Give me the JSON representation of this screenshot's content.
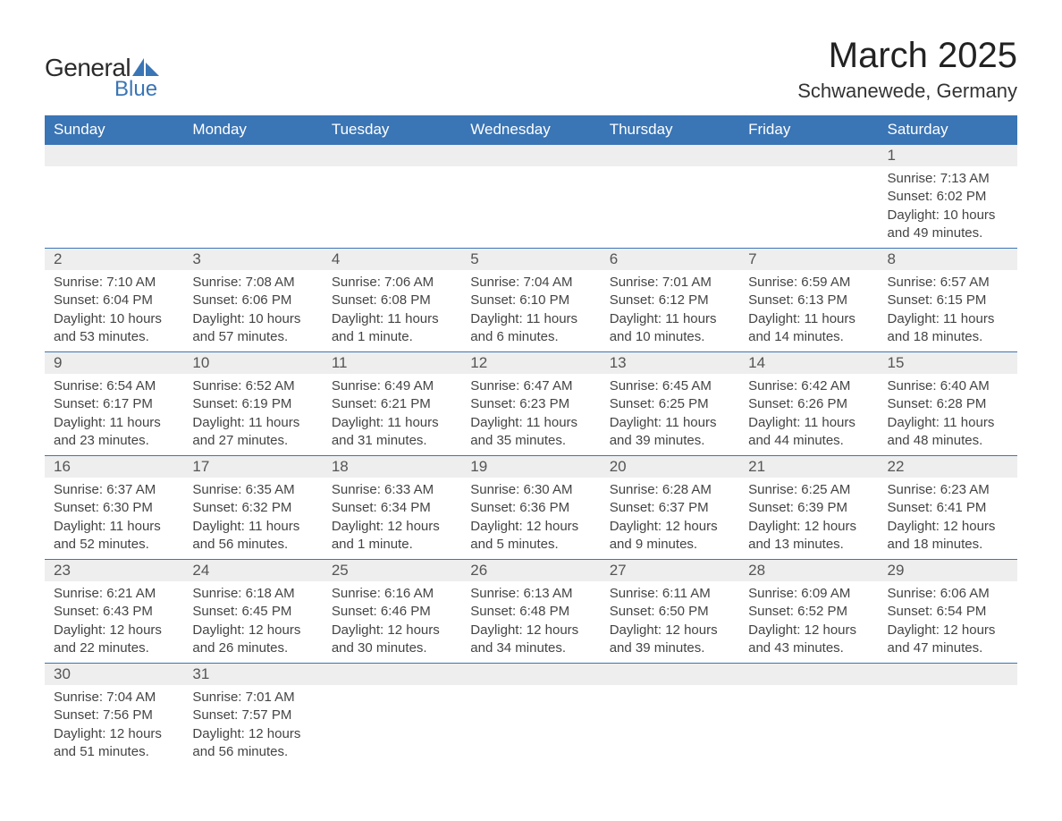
{
  "logo": {
    "general": "General",
    "blue": "Blue"
  },
  "title": "March 2025",
  "location": "Schwanewede, Germany",
  "colors": {
    "header_bg": "#3a75b5",
    "header_text": "#ffffff",
    "daynum_bg": "#eeeeee",
    "border": "#3a75b5",
    "text": "#444444",
    "logo_blue": "#3a75b5"
  },
  "day_headers": [
    "Sunday",
    "Monday",
    "Tuesday",
    "Wednesday",
    "Thursday",
    "Friday",
    "Saturday"
  ],
  "weeks": [
    [
      null,
      null,
      null,
      null,
      null,
      null,
      {
        "n": "1",
        "sr": "Sunrise: 7:13 AM",
        "ss": "Sunset: 6:02 PM",
        "d1": "Daylight: 10 hours",
        "d2": "and 49 minutes."
      }
    ],
    [
      {
        "n": "2",
        "sr": "Sunrise: 7:10 AM",
        "ss": "Sunset: 6:04 PM",
        "d1": "Daylight: 10 hours",
        "d2": "and 53 minutes."
      },
      {
        "n": "3",
        "sr": "Sunrise: 7:08 AM",
        "ss": "Sunset: 6:06 PM",
        "d1": "Daylight: 10 hours",
        "d2": "and 57 minutes."
      },
      {
        "n": "4",
        "sr": "Sunrise: 7:06 AM",
        "ss": "Sunset: 6:08 PM",
        "d1": "Daylight: 11 hours",
        "d2": "and 1 minute."
      },
      {
        "n": "5",
        "sr": "Sunrise: 7:04 AM",
        "ss": "Sunset: 6:10 PM",
        "d1": "Daylight: 11 hours",
        "d2": "and 6 minutes."
      },
      {
        "n": "6",
        "sr": "Sunrise: 7:01 AM",
        "ss": "Sunset: 6:12 PM",
        "d1": "Daylight: 11 hours",
        "d2": "and 10 minutes."
      },
      {
        "n": "7",
        "sr": "Sunrise: 6:59 AM",
        "ss": "Sunset: 6:13 PM",
        "d1": "Daylight: 11 hours",
        "d2": "and 14 minutes."
      },
      {
        "n": "8",
        "sr": "Sunrise: 6:57 AM",
        "ss": "Sunset: 6:15 PM",
        "d1": "Daylight: 11 hours",
        "d2": "and 18 minutes."
      }
    ],
    [
      {
        "n": "9",
        "sr": "Sunrise: 6:54 AM",
        "ss": "Sunset: 6:17 PM",
        "d1": "Daylight: 11 hours",
        "d2": "and 23 minutes."
      },
      {
        "n": "10",
        "sr": "Sunrise: 6:52 AM",
        "ss": "Sunset: 6:19 PM",
        "d1": "Daylight: 11 hours",
        "d2": "and 27 minutes."
      },
      {
        "n": "11",
        "sr": "Sunrise: 6:49 AM",
        "ss": "Sunset: 6:21 PM",
        "d1": "Daylight: 11 hours",
        "d2": "and 31 minutes."
      },
      {
        "n": "12",
        "sr": "Sunrise: 6:47 AM",
        "ss": "Sunset: 6:23 PM",
        "d1": "Daylight: 11 hours",
        "d2": "and 35 minutes."
      },
      {
        "n": "13",
        "sr": "Sunrise: 6:45 AM",
        "ss": "Sunset: 6:25 PM",
        "d1": "Daylight: 11 hours",
        "d2": "and 39 minutes."
      },
      {
        "n": "14",
        "sr": "Sunrise: 6:42 AM",
        "ss": "Sunset: 6:26 PM",
        "d1": "Daylight: 11 hours",
        "d2": "and 44 minutes."
      },
      {
        "n": "15",
        "sr": "Sunrise: 6:40 AM",
        "ss": "Sunset: 6:28 PM",
        "d1": "Daylight: 11 hours",
        "d2": "and 48 minutes."
      }
    ],
    [
      {
        "n": "16",
        "sr": "Sunrise: 6:37 AM",
        "ss": "Sunset: 6:30 PM",
        "d1": "Daylight: 11 hours",
        "d2": "and 52 minutes."
      },
      {
        "n": "17",
        "sr": "Sunrise: 6:35 AM",
        "ss": "Sunset: 6:32 PM",
        "d1": "Daylight: 11 hours",
        "d2": "and 56 minutes."
      },
      {
        "n": "18",
        "sr": "Sunrise: 6:33 AM",
        "ss": "Sunset: 6:34 PM",
        "d1": "Daylight: 12 hours",
        "d2": "and 1 minute."
      },
      {
        "n": "19",
        "sr": "Sunrise: 6:30 AM",
        "ss": "Sunset: 6:36 PM",
        "d1": "Daylight: 12 hours",
        "d2": "and 5 minutes."
      },
      {
        "n": "20",
        "sr": "Sunrise: 6:28 AM",
        "ss": "Sunset: 6:37 PM",
        "d1": "Daylight: 12 hours",
        "d2": "and 9 minutes."
      },
      {
        "n": "21",
        "sr": "Sunrise: 6:25 AM",
        "ss": "Sunset: 6:39 PM",
        "d1": "Daylight: 12 hours",
        "d2": "and 13 minutes."
      },
      {
        "n": "22",
        "sr": "Sunrise: 6:23 AM",
        "ss": "Sunset: 6:41 PM",
        "d1": "Daylight: 12 hours",
        "d2": "and 18 minutes."
      }
    ],
    [
      {
        "n": "23",
        "sr": "Sunrise: 6:21 AM",
        "ss": "Sunset: 6:43 PM",
        "d1": "Daylight: 12 hours",
        "d2": "and 22 minutes."
      },
      {
        "n": "24",
        "sr": "Sunrise: 6:18 AM",
        "ss": "Sunset: 6:45 PM",
        "d1": "Daylight: 12 hours",
        "d2": "and 26 minutes."
      },
      {
        "n": "25",
        "sr": "Sunrise: 6:16 AM",
        "ss": "Sunset: 6:46 PM",
        "d1": "Daylight: 12 hours",
        "d2": "and 30 minutes."
      },
      {
        "n": "26",
        "sr": "Sunrise: 6:13 AM",
        "ss": "Sunset: 6:48 PM",
        "d1": "Daylight: 12 hours",
        "d2": "and 34 minutes."
      },
      {
        "n": "27",
        "sr": "Sunrise: 6:11 AM",
        "ss": "Sunset: 6:50 PM",
        "d1": "Daylight: 12 hours",
        "d2": "and 39 minutes."
      },
      {
        "n": "28",
        "sr": "Sunrise: 6:09 AM",
        "ss": "Sunset: 6:52 PM",
        "d1": "Daylight: 12 hours",
        "d2": "and 43 minutes."
      },
      {
        "n": "29",
        "sr": "Sunrise: 6:06 AM",
        "ss": "Sunset: 6:54 PM",
        "d1": "Daylight: 12 hours",
        "d2": "and 47 minutes."
      }
    ],
    [
      {
        "n": "30",
        "sr": "Sunrise: 7:04 AM",
        "ss": "Sunset: 7:56 PM",
        "d1": "Daylight: 12 hours",
        "d2": "and 51 minutes."
      },
      {
        "n": "31",
        "sr": "Sunrise: 7:01 AM",
        "ss": "Sunset: 7:57 PM",
        "d1": "Daylight: 12 hours",
        "d2": "and 56 minutes."
      },
      null,
      null,
      null,
      null,
      null
    ]
  ]
}
